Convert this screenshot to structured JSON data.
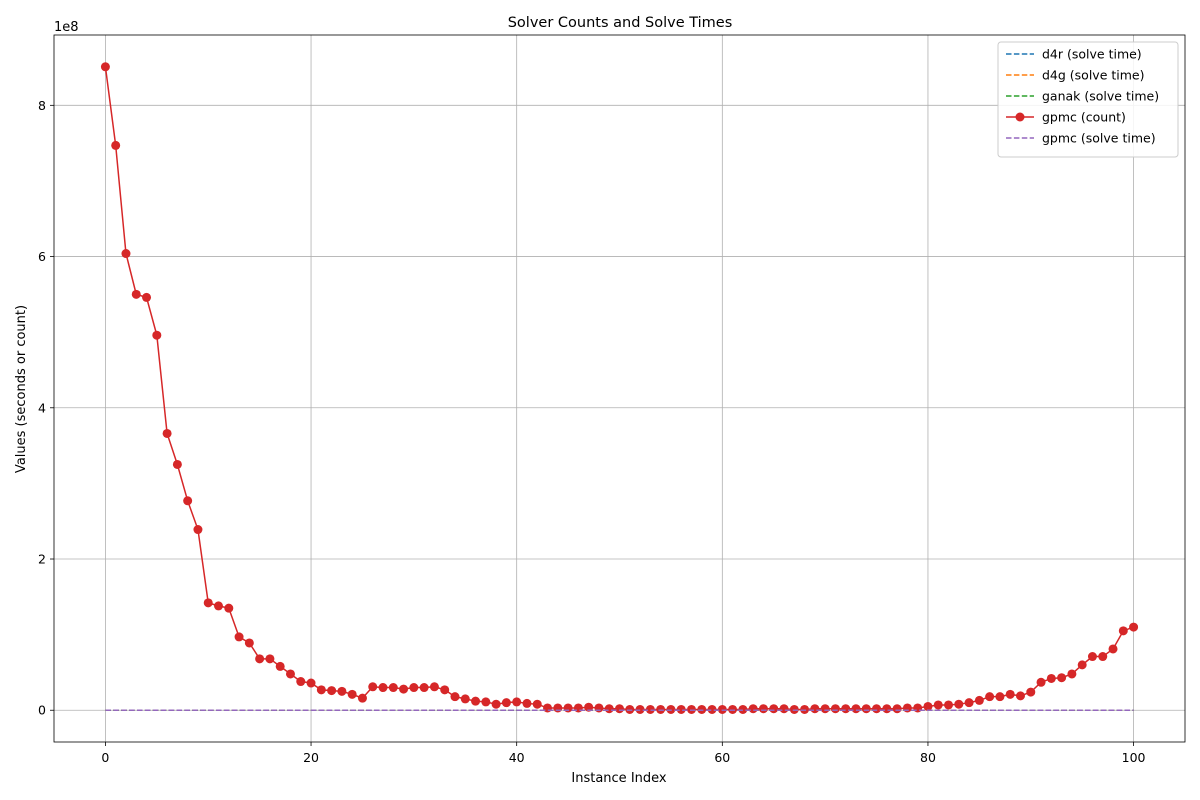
{
  "chart_data": {
    "type": "line",
    "title": "Solver Counts and Solve Times",
    "xlabel": "Instance Index",
    "ylabel": "Values (seconds or count)",
    "y_offset_label": "1e8",
    "y_scale_factor": 100000000,
    "xlim": [
      -5,
      105
    ],
    "ylim": [
      -42000000,
      893000000
    ],
    "x_ticks": [
      0,
      20,
      40,
      60,
      80,
      100
    ],
    "x_tick_labels": [
      "0",
      "20",
      "40",
      "60",
      "80",
      "100"
    ],
    "y_ticks": [
      0,
      200000000,
      400000000,
      600000000,
      800000000
    ],
    "y_tick_labels": [
      "0",
      "2",
      "4",
      "6",
      "8"
    ],
    "grid": true,
    "legend_position": "top-right",
    "series": [
      {
        "name": "d4r (solve time)",
        "color": "#1f77b4",
        "style": "dashed",
        "x_start": 0,
        "x_end": 100,
        "constant_value": 0
      },
      {
        "name": "d4g (solve time)",
        "color": "#ff7f0e",
        "style": "dashed",
        "x_start": 0,
        "x_end": 100,
        "constant_value": 0
      },
      {
        "name": "ganak (solve time)",
        "color": "#2ca02c",
        "style": "dashed",
        "x_start": 0,
        "x_end": 100,
        "constant_value": 0
      },
      {
        "name": "gpmc (count)",
        "color": "#d62728",
        "style": "solid-marker",
        "x_start": 0,
        "values": [
          851000000,
          747000000,
          604000000,
          550000000,
          546000000,
          496000000,
          366000000,
          325000000,
          277000000,
          239000000,
          142000000,
          138000000,
          135000000,
          97000000,
          89000000,
          68000000,
          68000000,
          58000000,
          48000000,
          38000000,
          36000000,
          27000000,
          26000000,
          25000000,
          21000000,
          16000000,
          31000000,
          30000000,
          30000000,
          28000000,
          30000000,
          30000000,
          31000000,
          27000000,
          18000000,
          15000000,
          12000000,
          11000000,
          8000000,
          10000000,
          11000000,
          9000000,
          8000000,
          3000000,
          3000000,
          3000000,
          3000000,
          4000000,
          3000000,
          2000000,
          2000000,
          1000000,
          1000000,
          1000000,
          1000000,
          1000000,
          1000000,
          1000000,
          1000000,
          1000000,
          1000000,
          1000000,
          1000000,
          2000000,
          2000000,
          2000000,
          2000000,
          1000000,
          1000000,
          2000000,
          2000000,
          2000000,
          2000000,
          2000000,
          2000000,
          2000000,
          2000000,
          2000000,
          3000000,
          3000000,
          5000000,
          7000000,
          7000000,
          8000000,
          10000000,
          13000000,
          18000000,
          18000000,
          21000000,
          19000000,
          24000000,
          37000000,
          42000000,
          43000000,
          48000000,
          60000000,
          71000000,
          71000000,
          81000000,
          105000000,
          110000000
        ]
      },
      {
        "name": "gpmc (solve time)",
        "color": "#9467bd",
        "style": "dashed",
        "x_start": 0,
        "x_end": 100,
        "constant_value": 0
      }
    ]
  }
}
